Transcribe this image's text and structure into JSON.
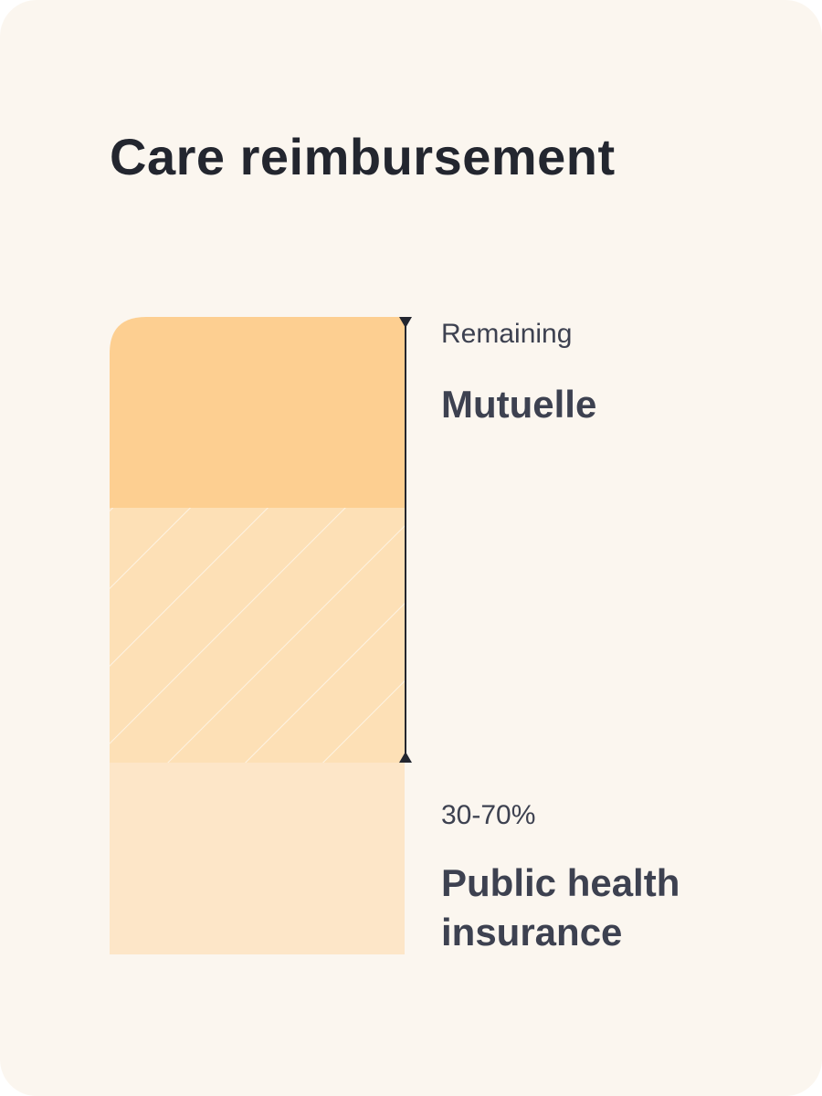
{
  "title": "Care reimbursement",
  "mutuelle": {
    "caption": "Remaining",
    "name": "Mutuelle"
  },
  "public_insurance": {
    "caption": "30-70%",
    "name": "Public health insurance"
  },
  "colors": {
    "card_background": "#fbf6ef",
    "mutuelle_solid": "#fdcf91",
    "mutuelle_hatched": "#fde0b6",
    "public_insurance": "#fde6c8",
    "bracket": "#23262f"
  }
}
